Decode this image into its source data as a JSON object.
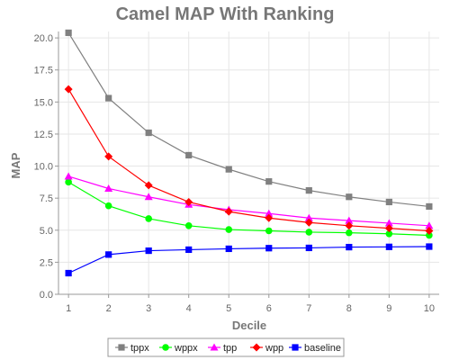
{
  "chart_data": {
    "type": "line",
    "title": "Camel MAP With Ranking",
    "xlabel": "Decile",
    "ylabel": "MAP",
    "x": [
      1,
      2,
      3,
      4,
      5,
      6,
      7,
      8,
      9,
      10
    ],
    "xlim": [
      0.75,
      10.25
    ],
    "ylim": [
      0,
      20.5
    ],
    "yticks": [
      "0.0",
      "2.5",
      "5.0",
      "7.5",
      "10.0",
      "12.5",
      "15.0",
      "17.5",
      "20.0"
    ],
    "ytick_values": [
      0,
      2.5,
      5,
      7.5,
      10,
      12.5,
      15,
      17.5,
      20
    ],
    "xticks": [
      "1",
      "2",
      "3",
      "4",
      "5",
      "6",
      "7",
      "8",
      "9",
      "10"
    ],
    "grid": true,
    "legend_position": "bottom",
    "series": [
      {
        "name": "tppx",
        "color": "#808080",
        "marker": "square",
        "values": [
          20.4,
          15.3,
          12.6,
          10.85,
          9.75,
          8.8,
          8.1,
          7.6,
          7.2,
          6.85
        ]
      },
      {
        "name": "wppx",
        "color": "#00ff00",
        "marker": "circle",
        "values": [
          8.75,
          6.9,
          5.9,
          5.35,
          5.05,
          4.95,
          4.85,
          4.8,
          4.72,
          4.6
        ]
      },
      {
        "name": "tpp",
        "color": "#ff00ff",
        "marker": "triangle",
        "values": [
          9.2,
          8.25,
          7.6,
          7.0,
          6.6,
          6.3,
          5.95,
          5.75,
          5.55,
          5.35
        ]
      },
      {
        "name": "wpp",
        "color": "#ff0000",
        "marker": "diamond",
        "values": [
          16.0,
          10.75,
          8.5,
          7.2,
          6.45,
          5.95,
          5.6,
          5.35,
          5.15,
          4.95
        ]
      },
      {
        "name": "baseline",
        "color": "#0000ff",
        "marker": "square",
        "values": [
          1.65,
          3.1,
          3.4,
          3.48,
          3.55,
          3.6,
          3.62,
          3.68,
          3.7,
          3.72
        ]
      }
    ]
  }
}
